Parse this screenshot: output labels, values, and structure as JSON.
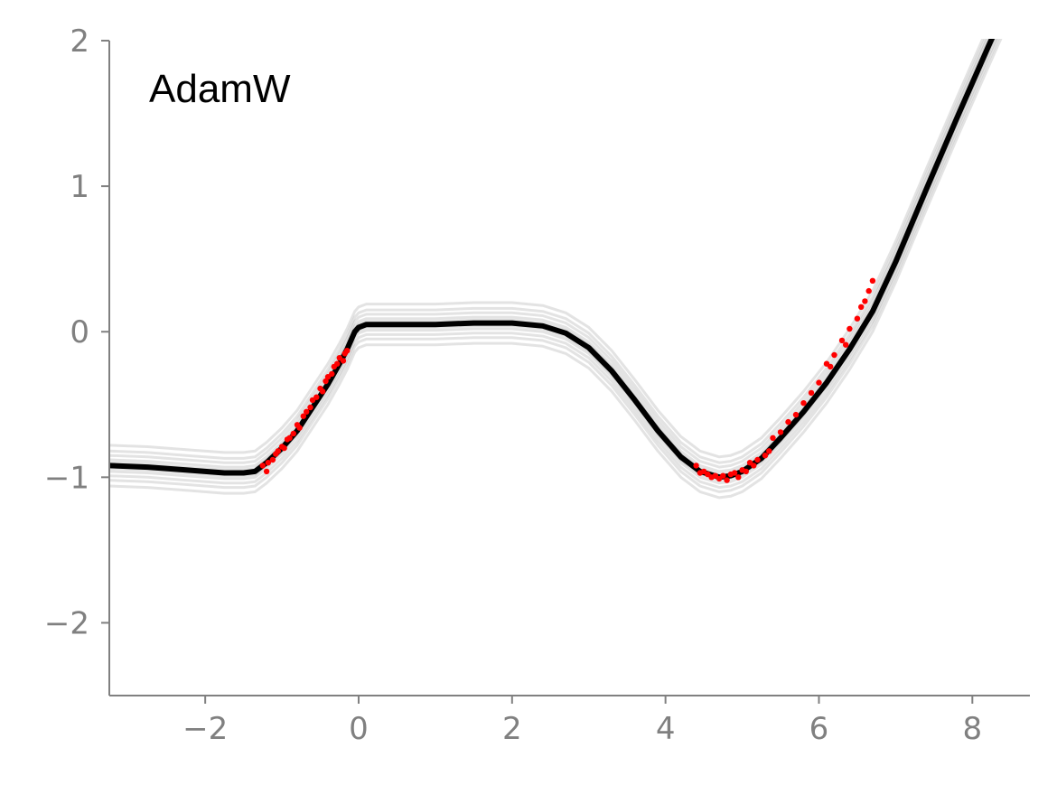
{
  "chart_data": {
    "type": "line",
    "title": "",
    "xlabel": "",
    "ylabel": "",
    "annotation": "AdamW",
    "xlim": [
      -3.25,
      8.75
    ],
    "ylim": [
      -2.5,
      2.0
    ],
    "xticks": [
      -2,
      0,
      2,
      4,
      6,
      8
    ],
    "yticks": [
      -2,
      -1,
      0,
      1,
      2
    ],
    "xtick_labels": [
      "−2",
      "0",
      "2",
      "4",
      "6",
      "8"
    ],
    "ytick_labels": [
      "−2",
      "−1",
      "0",
      "1",
      "2"
    ],
    "grid": false,
    "colors": {
      "mean": "#000000",
      "samples": "#808080",
      "points": "#ff0000",
      "axis": "#808080"
    },
    "series": [
      {
        "role": "mean",
        "x": [
          -3.25,
          -2.75,
          -2.25,
          -1.75,
          -1.5,
          -1.35,
          -1.2,
          -1.0,
          -0.8,
          -0.6,
          -0.4,
          -0.25,
          -0.15,
          -0.05,
          0.0,
          0.1,
          0.5,
          1.0,
          1.5,
          2.0,
          2.4,
          2.7,
          3.0,
          3.3,
          3.6,
          3.9,
          4.2,
          4.45,
          4.7,
          4.85,
          5.0,
          5.25,
          5.5,
          5.8,
          6.1,
          6.4,
          6.7,
          7.0,
          7.4,
          7.8,
          8.2,
          8.75
        ],
        "y": [
          -0.92,
          -0.93,
          -0.95,
          -0.97,
          -0.97,
          -0.96,
          -0.9,
          -0.8,
          -0.68,
          -0.52,
          -0.36,
          -0.22,
          -0.12,
          0.0,
          0.03,
          0.05,
          0.05,
          0.05,
          0.06,
          0.06,
          0.04,
          -0.01,
          -0.11,
          -0.27,
          -0.47,
          -0.68,
          -0.86,
          -0.96,
          -1.0,
          -0.99,
          -0.96,
          -0.87,
          -0.73,
          -0.55,
          -0.35,
          -0.12,
          0.14,
          0.48,
          0.98,
          1.47,
          1.95,
          2.6
        ]
      }
    ],
    "sample_offsets": [
      -0.14,
      -0.1,
      -0.07,
      -0.04,
      -0.02,
      0.02,
      0.04,
      0.07,
      0.1,
      0.14
    ],
    "points": {
      "x": [
        -1.25,
        -1.2,
        -1.18,
        -1.12,
        -1.08,
        -1.05,
        -1.0,
        -0.97,
        -0.93,
        -0.9,
        -0.85,
        -0.8,
        -0.77,
        -0.72,
        -0.68,
        -0.63,
        -0.6,
        -0.55,
        -0.5,
        -0.47,
        -0.43,
        -0.4,
        -0.35,
        -0.32,
        -0.28,
        -0.25,
        -0.2,
        -0.18,
        -0.15,
        4.4,
        4.45,
        4.5,
        4.55,
        4.6,
        4.65,
        4.7,
        4.75,
        4.8,
        4.85,
        4.9,
        4.95,
        5.0,
        5.05,
        5.1,
        5.15,
        5.2,
        5.3,
        5.35,
        5.4,
        5.5,
        5.6,
        5.7,
        5.8,
        5.9,
        6.0,
        6.1,
        6.15,
        6.2,
        6.3,
        6.35,
        6.4,
        6.5,
        6.55,
        6.6,
        6.65,
        6.7
      ],
      "y": [
        -0.92,
        -0.96,
        -0.9,
        -0.88,
        -0.84,
        -0.82,
        -0.79,
        -0.8,
        -0.74,
        -0.73,
        -0.7,
        -0.64,
        -0.66,
        -0.58,
        -0.55,
        -0.52,
        -0.47,
        -0.45,
        -0.39,
        -0.41,
        -0.34,
        -0.31,
        -0.29,
        -0.24,
        -0.22,
        -0.18,
        -0.2,
        -0.15,
        -0.13,
        -0.92,
        -0.97,
        -0.96,
        -0.98,
        -1.0,
        -0.99,
        -1.01,
        -0.99,
        -1.02,
        -0.98,
        -0.97,
        -1.0,
        -0.95,
        -0.96,
        -0.9,
        -0.92,
        -0.88,
        -0.85,
        -0.82,
        -0.73,
        -0.69,
        -0.62,
        -0.57,
        -0.49,
        -0.42,
        -0.35,
        -0.22,
        -0.24,
        -0.16,
        -0.06,
        -0.09,
        0.02,
        0.09,
        0.17,
        0.21,
        0.28,
        0.35
      ]
    }
  }
}
